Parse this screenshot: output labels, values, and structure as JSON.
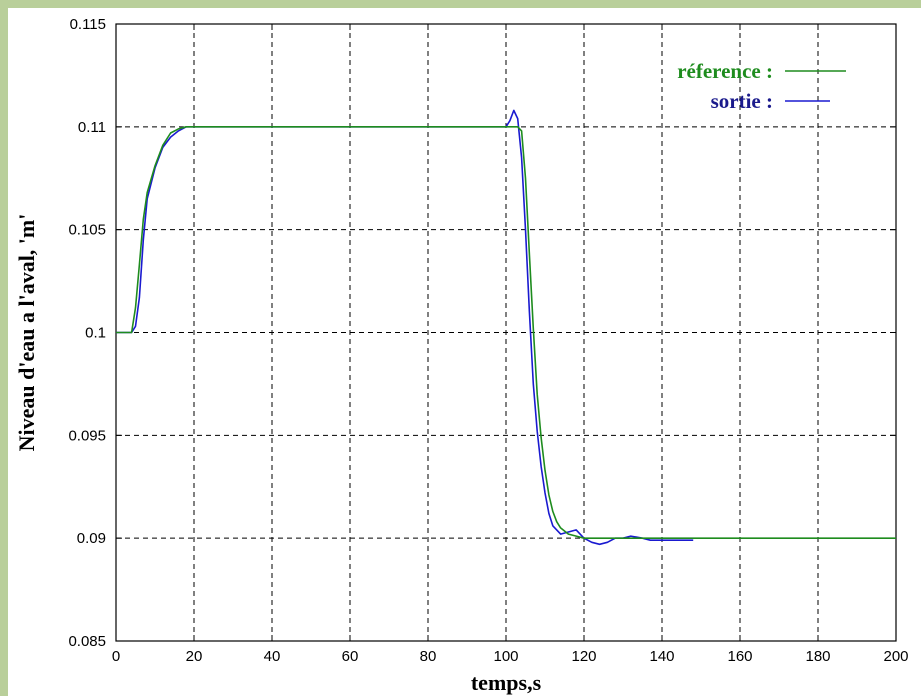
{
  "chart_data": {
    "type": "line",
    "xlabel": "temps,s",
    "ylabel": "Niveau d'eau a l'aval, 'm'",
    "xlim": [
      0,
      200
    ],
    "ylim": [
      0.085,
      0.115
    ],
    "x_ticks": [
      0,
      20,
      40,
      60,
      80,
      100,
      120,
      140,
      160,
      180,
      200
    ],
    "y_ticks": [
      0.085,
      0.09,
      0.095,
      0.1,
      0.105,
      0.11,
      0.115
    ],
    "x_tick_labels": [
      "0",
      "20",
      "40",
      "60",
      "80",
      "100",
      "120",
      "140",
      "160",
      "180",
      "200"
    ],
    "y_tick_labels": [
      "0.085",
      "0.09",
      "0.095",
      "0.1",
      "0.105",
      "0.11",
      "0.115"
    ],
    "grid": true,
    "legend_position": "top-right",
    "series": [
      {
        "name": "réference :",
        "color": "#1e8c1e",
        "x": [
          0,
          4,
          5,
          6,
          7,
          8,
          10,
          12,
          14,
          16,
          18,
          20,
          22,
          40,
          60,
          80,
          100,
          102,
          103,
          104,
          105,
          106,
          107,
          108,
          109,
          110,
          111,
          112,
          113,
          114,
          116,
          118,
          120,
          125,
          130,
          140,
          160,
          180,
          200
        ],
        "y": [
          0.1,
          0.1,
          0.1012,
          0.1033,
          0.1055,
          0.1068,
          0.1081,
          0.1091,
          0.1097,
          0.1099,
          0.11,
          0.11,
          0.11,
          0.11,
          0.11,
          0.11,
          0.11,
          0.11,
          0.11,
          0.1098,
          0.1075,
          0.1038,
          0.1002,
          0.097,
          0.0949,
          0.0933,
          0.0921,
          0.0913,
          0.0908,
          0.0905,
          0.0902,
          0.0901,
          0.09,
          0.09,
          0.09,
          0.09,
          0.09,
          0.09,
          0.09
        ]
      },
      {
        "name": "sortie :",
        "color": "#1a1ad0",
        "x": [
          0,
          4,
          5,
          6,
          7,
          8,
          10,
          12,
          14,
          16,
          18,
          20,
          22,
          40,
          60,
          80,
          100,
          101,
          102,
          103,
          104,
          105,
          106,
          107,
          108,
          109,
          110,
          111,
          112,
          114,
          116,
          118,
          120,
          122,
          124,
          126,
          128,
          130,
          132,
          135,
          137,
          140,
          145,
          148
        ],
        "y": [
          0.1,
          0.1,
          0.1003,
          0.1017,
          0.1045,
          0.1065,
          0.108,
          0.109,
          0.1095,
          0.1098,
          0.11,
          0.11,
          0.11,
          0.11,
          0.11,
          0.11,
          0.11,
          0.1103,
          0.1108,
          0.1104,
          0.1085,
          0.105,
          0.101,
          0.0975,
          0.0952,
          0.0935,
          0.0922,
          0.0912,
          0.0906,
          0.0902,
          0.0903,
          0.0904,
          0.09,
          0.0898,
          0.0897,
          0.0898,
          0.09,
          0.09,
          0.0901,
          0.09,
          0.0899,
          0.0899,
          0.0899,
          0.0899
        ]
      }
    ]
  }
}
